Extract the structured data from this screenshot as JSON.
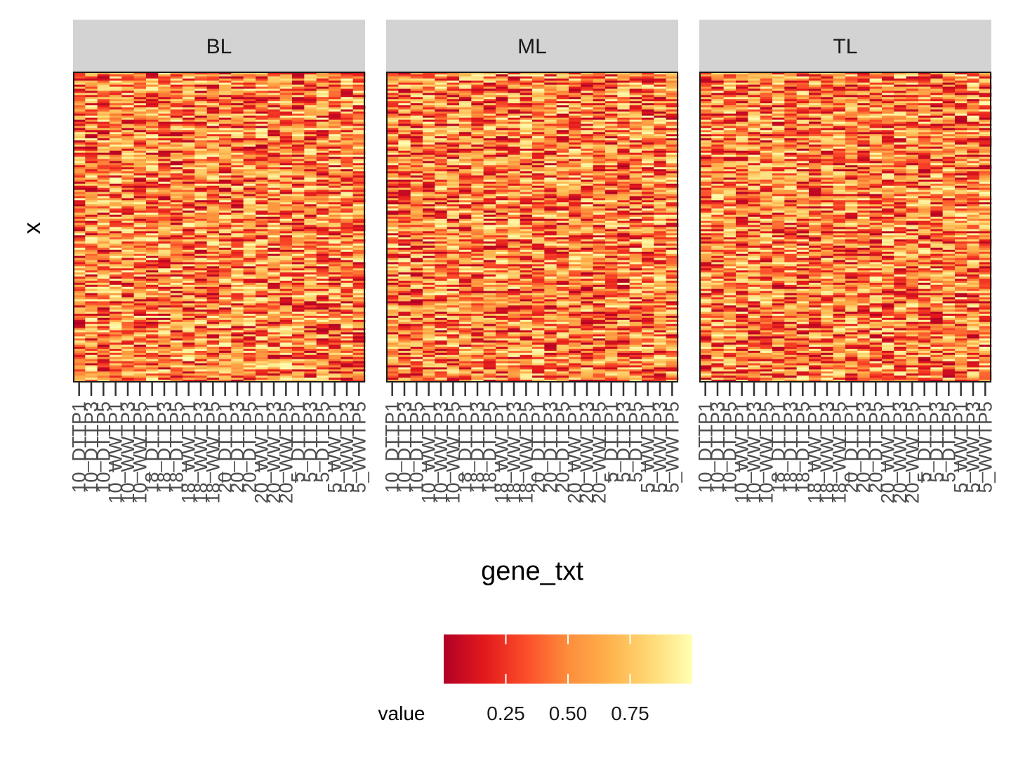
{
  "chart_data": {
    "type": "heatmap",
    "xlabel": "gene_txt",
    "ylabel": "x",
    "facets": [
      "BL",
      "ML",
      "TL"
    ],
    "x_categories": [
      "10_DTTP1",
      "10_DTTP3",
      "10_DTTP5",
      "10_WWTP1",
      "10_WWTP3",
      "10_WWTP5",
      "18_DTTP1",
      "18_DTTP3",
      "18_DTTP5",
      "18_WWTP1",
      "18_WWTP3",
      "18_WWTP5",
      "20_DTTP1",
      "20_DTTP3",
      "20_DTTP5",
      "20_WWTP1",
      "20_WWTP3",
      "20_WWTP5",
      "5_DTTP1",
      "5_DTTP3",
      "5_DTTP5",
      "5_WWTP1",
      "5_WWTP3",
      "5_WWTP5"
    ],
    "y_count": 150,
    "legend": {
      "title": "value",
      "position": "bottom",
      "ticks": [
        0.25,
        0.5,
        0.75
      ],
      "tick_labels": [
        "0.25",
        "0.50",
        "0.75"
      ],
      "range": [
        0,
        1
      ],
      "colors": [
        "#b10026",
        "#e31a1c",
        "#fc4e2a",
        "#fd8d3c",
        "#feb24c",
        "#fed976",
        "#ffffb2"
      ]
    },
    "value_distribution": "uniform random values in [0, 1]",
    "seeds": {
      "BL": 11,
      "ML": 23,
      "TL": 37
    },
    "grid": false
  }
}
